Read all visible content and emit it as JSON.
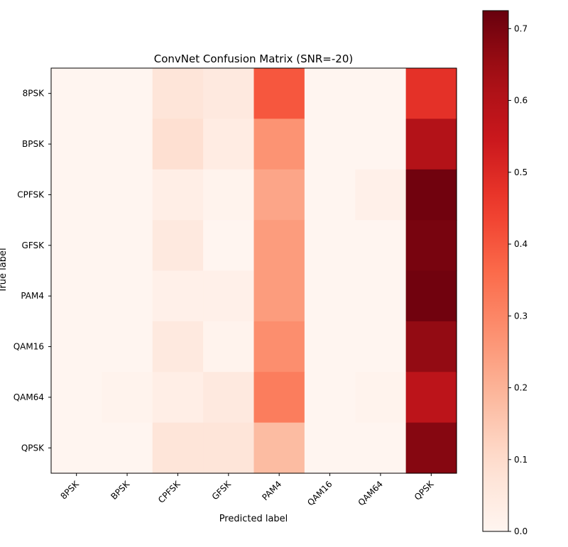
{
  "chart_data": {
    "type": "heatmap",
    "title": "ConvNet Confusion Matrix (SNR=-20)",
    "xlabel": "Predicted label",
    "ylabel": "True label",
    "x_categories": [
      "8PSK",
      "BPSK",
      "CPFSK",
      "GFSK",
      "PAM4",
      "QAM16",
      "QAM64",
      "QPSK"
    ],
    "y_categories": [
      "8PSK",
      "BPSK",
      "CPFSK",
      "GFSK",
      "PAM4",
      "QAM16",
      "QAM64",
      "QPSK"
    ],
    "values": [
      [
        0.0,
        0.0,
        0.07,
        0.05,
        0.4,
        0.0,
        0.0,
        0.48
      ],
      [
        0.0,
        0.0,
        0.09,
        0.04,
        0.27,
        0.0,
        0.0,
        0.6
      ],
      [
        0.0,
        0.0,
        0.03,
        0.01,
        0.23,
        0.0,
        0.02,
        0.71
      ],
      [
        0.0,
        0.0,
        0.05,
        0.0,
        0.25,
        0.0,
        0.0,
        0.7
      ],
      [
        0.0,
        0.0,
        0.02,
        0.02,
        0.25,
        0.0,
        0.0,
        0.71
      ],
      [
        0.0,
        0.0,
        0.05,
        0.01,
        0.28,
        0.0,
        0.0,
        0.66
      ],
      [
        0.0,
        0.01,
        0.03,
        0.05,
        0.32,
        0.0,
        0.01,
        0.58
      ],
      [
        0.0,
        0.0,
        0.07,
        0.07,
        0.18,
        0.0,
        0.0,
        0.68
      ]
    ],
    "colormap": "Reds",
    "colorbar": {
      "range": [
        0.0,
        0.725
      ],
      "ticks": [
        0.0,
        0.1,
        0.2,
        0.3,
        0.4,
        0.5,
        0.6,
        0.7
      ],
      "tick_labels": [
        "0.0",
        "0.1",
        "0.2",
        "0.3",
        "0.4",
        "0.5",
        "0.6",
        "0.7"
      ]
    },
    "grid": false
  }
}
